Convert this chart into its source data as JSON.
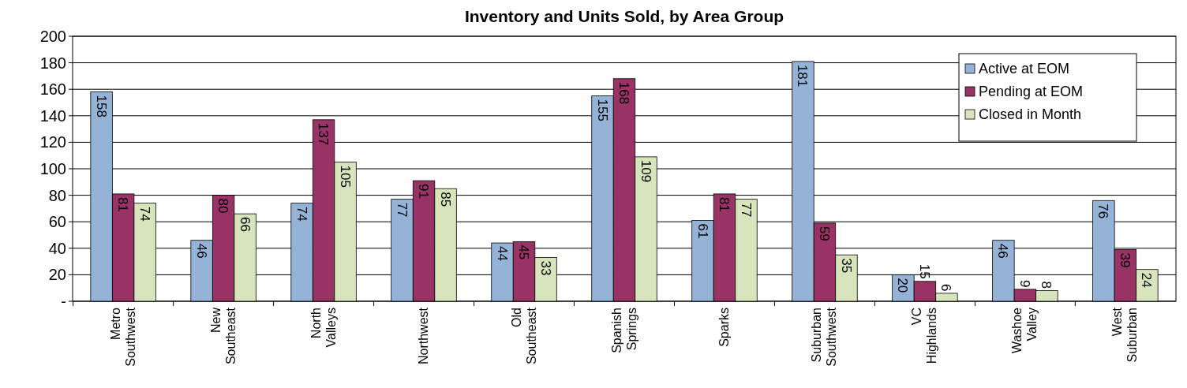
{
  "chart_data": {
    "type": "bar",
    "title": "Inventory and Units Sold, by Area Group",
    "categories": [
      "Metro Southwest",
      "New Southeast",
      "North Valleys",
      "Northwest",
      "Old Southeast",
      "Spanish Springs",
      "Sparks",
      "Suburban Southwest",
      "VC Highlands",
      "Washoe Valley",
      "West Suburban"
    ],
    "series": [
      {
        "name": "Active at EOM",
        "color": "#95b3d7",
        "values": [
          158,
          46,
          74,
          77,
          44,
          155,
          61,
          181,
          20,
          46,
          76
        ]
      },
      {
        "name": "Pending at EOM",
        "color": "#993366",
        "values": [
          81,
          80,
          137,
          91,
          45,
          168,
          81,
          59,
          15,
          9,
          39
        ]
      },
      {
        "name": "Closed in Month",
        "color": "#d7e4bc",
        "values": [
          74,
          66,
          105,
          85,
          33,
          109,
          77,
          35,
          6,
          8,
          24
        ]
      }
    ],
    "ylim": [
      0,
      200
    ],
    "yticks": [
      {
        "value": 0,
        "label": "-"
      },
      20,
      40,
      60,
      80,
      100,
      120,
      140,
      160,
      180,
      200
    ],
    "grid": "y",
    "legend": "top right",
    "data_labels": true
  }
}
